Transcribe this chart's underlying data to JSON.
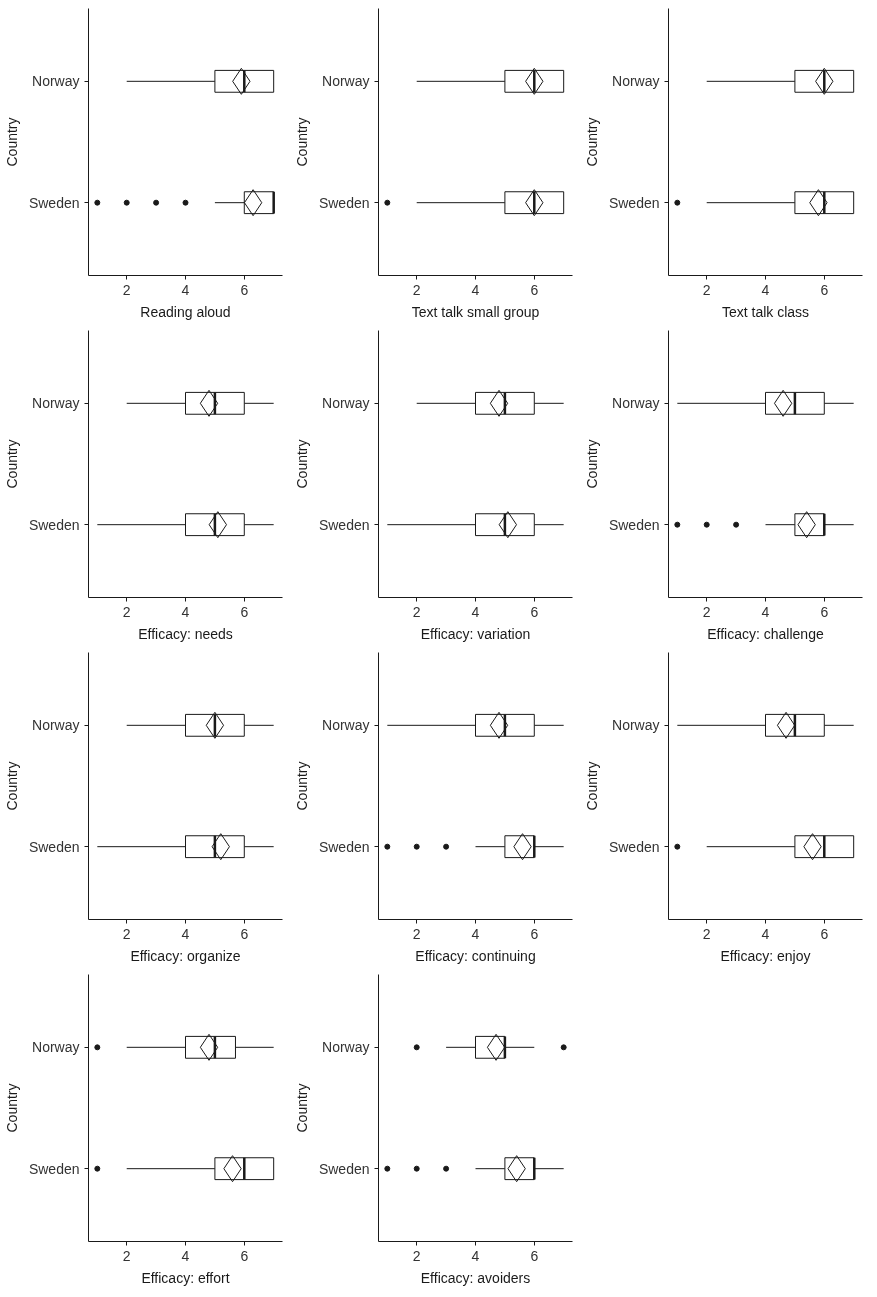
{
  "chart_data": [
    {
      "type": "box",
      "orientation": "horizontal",
      "categories": [
        "Norway",
        "Sweden"
      ],
      "xlabel": "Reading aloud",
      "ylabel": "Country",
      "xlim": [
        0.7,
        7.3
      ],
      "xticks": [
        2,
        4,
        6
      ],
      "boxes": [
        {
          "low": 2,
          "q1": 5,
          "median": 6,
          "q3": 7,
          "high": 7,
          "mean": 5.9
        },
        {
          "low": 5,
          "q1": 6,
          "median": 7,
          "q3": 7,
          "high": 7,
          "mean": 6.3,
          "outliers": [
            1,
            2,
            3,
            4
          ]
        }
      ]
    },
    {
      "type": "box",
      "orientation": "horizontal",
      "categories": [
        "Norway",
        "Sweden"
      ],
      "xlabel": "Text talk small group",
      "ylabel": "Country",
      "xlim": [
        0.7,
        7.3
      ],
      "xticks": [
        2,
        4,
        6
      ],
      "boxes": [
        {
          "low": 2,
          "q1": 5,
          "median": 6,
          "q3": 7,
          "high": 7,
          "mean": 6.0
        },
        {
          "low": 2,
          "q1": 5,
          "median": 6,
          "q3": 7,
          "high": 7,
          "mean": 6.0,
          "outliers": [
            1
          ]
        }
      ]
    },
    {
      "type": "box",
      "orientation": "horizontal",
      "categories": [
        "Norway",
        "Sweden"
      ],
      "xlabel": "Text talk class",
      "ylabel": "Country",
      "xlim": [
        0.7,
        7.3
      ],
      "xticks": [
        2,
        4,
        6
      ],
      "boxes": [
        {
          "low": 2,
          "q1": 5,
          "median": 6,
          "q3": 7,
          "high": 7,
          "mean": 6.0
        },
        {
          "low": 2,
          "q1": 5,
          "median": 6,
          "q3": 7,
          "high": 7,
          "mean": 5.8,
          "outliers": [
            1
          ]
        }
      ]
    },
    {
      "type": "box",
      "orientation": "horizontal",
      "categories": [
        "Norway",
        "Sweden"
      ],
      "xlabel": "Efficacy: needs",
      "ylabel": "Country",
      "xlim": [
        0.7,
        7.3
      ],
      "xticks": [
        2,
        4,
        6
      ],
      "boxes": [
        {
          "low": 2,
          "q1": 4,
          "median": 5,
          "q3": 6,
          "high": 7,
          "mean": 4.8
        },
        {
          "low": 1,
          "q1": 4,
          "median": 5,
          "q3": 6,
          "high": 7,
          "mean": 5.1
        }
      ]
    },
    {
      "type": "box",
      "orientation": "horizontal",
      "categories": [
        "Norway",
        "Sweden"
      ],
      "xlabel": "Efficacy: variation",
      "ylabel": "Country",
      "xlim": [
        0.7,
        7.3
      ],
      "xticks": [
        2,
        4,
        6
      ],
      "boxes": [
        {
          "low": 2,
          "q1": 4,
          "median": 5,
          "q3": 6,
          "high": 7,
          "mean": 4.8
        },
        {
          "low": 1,
          "q1": 4,
          "median": 5,
          "q3": 6,
          "high": 7,
          "mean": 5.1
        }
      ]
    },
    {
      "type": "box",
      "orientation": "horizontal",
      "categories": [
        "Norway",
        "Sweden"
      ],
      "xlabel": "Efficacy: challenge",
      "ylabel": "Country",
      "xlim": [
        0.7,
        7.3
      ],
      "xticks": [
        2,
        4,
        6
      ],
      "boxes": [
        {
          "low": 1,
          "q1": 4,
          "median": 5,
          "q3": 6,
          "high": 7,
          "mean": 4.6
        },
        {
          "low": 4,
          "q1": 5,
          "median": 6,
          "q3": 6,
          "high": 7,
          "mean": 5.4,
          "outliers": [
            1,
            2,
            3
          ]
        }
      ]
    },
    {
      "type": "box",
      "orientation": "horizontal",
      "categories": [
        "Norway",
        "Sweden"
      ],
      "xlabel": "Efficacy: organize",
      "ylabel": "Country",
      "xlim": [
        0.7,
        7.3
      ],
      "xticks": [
        2,
        4,
        6
      ],
      "boxes": [
        {
          "low": 2,
          "q1": 4,
          "median": 5,
          "q3": 6,
          "high": 7,
          "mean": 5.0
        },
        {
          "low": 1,
          "q1": 4,
          "median": 5,
          "q3": 6,
          "high": 7,
          "mean": 5.2
        }
      ]
    },
    {
      "type": "box",
      "orientation": "horizontal",
      "categories": [
        "Norway",
        "Sweden"
      ],
      "xlabel": "Efficacy: continuing",
      "ylabel": "Country",
      "xlim": [
        0.7,
        7.3
      ],
      "xticks": [
        2,
        4,
        6
      ],
      "boxes": [
        {
          "low": 1,
          "q1": 4,
          "median": 5,
          "q3": 6,
          "high": 7,
          "mean": 4.8
        },
        {
          "low": 4,
          "q1": 5,
          "median": 6,
          "q3": 6,
          "high": 7,
          "mean": 5.6,
          "outliers": [
            1,
            2,
            3
          ]
        }
      ]
    },
    {
      "type": "box",
      "orientation": "horizontal",
      "categories": [
        "Norway",
        "Sweden"
      ],
      "xlabel": "Efficacy: enjoy",
      "ylabel": "Country",
      "xlim": [
        0.7,
        7.3
      ],
      "xticks": [
        2,
        4,
        6
      ],
      "boxes": [
        {
          "low": 1,
          "q1": 4,
          "median": 5,
          "q3": 6,
          "high": 7,
          "mean": 4.7
        },
        {
          "low": 2,
          "q1": 5,
          "median": 6,
          "q3": 7,
          "high": 7,
          "mean": 5.6,
          "outliers": [
            1
          ]
        }
      ]
    },
    {
      "type": "box",
      "orientation": "horizontal",
      "categories": [
        "Norway",
        "Sweden"
      ],
      "xlabel": "Efficacy: effort",
      "ylabel": "Country",
      "xlim": [
        0.7,
        7.3
      ],
      "xticks": [
        2,
        4,
        6
      ],
      "boxes": [
        {
          "low": 2,
          "q1": 4,
          "median": 5,
          "q3": 5.7,
          "high": 7,
          "mean": 4.8,
          "outliers": [
            1
          ]
        },
        {
          "low": 2,
          "q1": 5,
          "median": 6,
          "q3": 7,
          "high": 7,
          "mean": 5.6,
          "outliers": [
            1
          ]
        }
      ]
    },
    {
      "type": "box",
      "orientation": "horizontal",
      "categories": [
        "Norway",
        "Sweden"
      ],
      "xlabel": "Efficacy: avoiders",
      "ylabel": "Country",
      "xlim": [
        0.7,
        7.3
      ],
      "xticks": [
        2,
        4,
        6
      ],
      "boxes": [
        {
          "low": 3,
          "q1": 4,
          "median": 5,
          "q3": 5,
          "high": 6,
          "mean": 4.7,
          "outliers": [
            2,
            7
          ]
        },
        {
          "low": 4,
          "q1": 5,
          "median": 6,
          "q3": 6,
          "high": 7,
          "mean": 5.4,
          "outliers": [
            1,
            2,
            3
          ]
        }
      ]
    }
  ]
}
